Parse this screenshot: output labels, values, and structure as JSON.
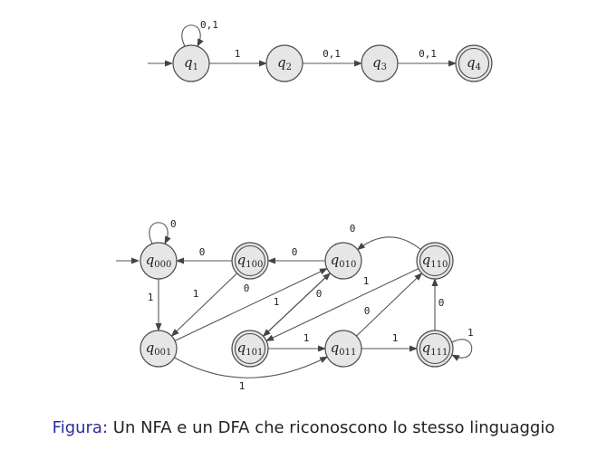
{
  "nfa": {
    "states": [
      {
        "id": "q1",
        "base": "q",
        "sub": "1",
        "accepting": false
      },
      {
        "id": "q2",
        "base": "q",
        "sub": "2",
        "accepting": false
      },
      {
        "id": "q3",
        "base": "q",
        "sub": "3",
        "accepting": false
      },
      {
        "id": "q4",
        "base": "q",
        "sub": "4",
        "accepting": true
      }
    ],
    "start": "q1",
    "transitions": [
      {
        "from": "q1",
        "to": "q1",
        "label": "0,1"
      },
      {
        "from": "q1",
        "to": "q2",
        "label": "1"
      },
      {
        "from": "q2",
        "to": "q3",
        "label": "0,1"
      },
      {
        "from": "q3",
        "to": "q4",
        "label": "0,1"
      }
    ]
  },
  "dfa": {
    "states": [
      {
        "id": "q000",
        "base": "q",
        "sub": "000",
        "accepting": false
      },
      {
        "id": "q100",
        "base": "q",
        "sub": "100",
        "accepting": true
      },
      {
        "id": "q010",
        "base": "q",
        "sub": "010",
        "accepting": false
      },
      {
        "id": "q110",
        "base": "q",
        "sub": "110",
        "accepting": true
      },
      {
        "id": "q001",
        "base": "q",
        "sub": "001",
        "accepting": false
      },
      {
        "id": "q101",
        "base": "q",
        "sub": "101",
        "accepting": true
      },
      {
        "id": "q011",
        "base": "q",
        "sub": "011",
        "accepting": false
      },
      {
        "id": "q111",
        "base": "q",
        "sub": "111",
        "accepting": true
      }
    ],
    "start": "q000",
    "transitions": [
      {
        "from": "q000",
        "to": "q000",
        "label": "0"
      },
      {
        "from": "q100",
        "to": "q000",
        "label": "0"
      },
      {
        "from": "q010",
        "to": "q100",
        "label": "0"
      },
      {
        "from": "q110",
        "to": "q010",
        "label": "0"
      },
      {
        "from": "q000",
        "to": "q001",
        "label": "1"
      },
      {
        "from": "q100",
        "to": "q001",
        "label": "1"
      },
      {
        "from": "q001",
        "to": "q010",
        "label": "0"
      },
      {
        "from": "q101",
        "to": "q010",
        "label": "0"
      },
      {
        "from": "q010",
        "to": "q101",
        "label": "1"
      },
      {
        "from": "q110",
        "to": "q101",
        "label": "1"
      },
      {
        "from": "q101",
        "to": "q011",
        "label": "1"
      },
      {
        "from": "q011",
        "to": "q110",
        "label": "0"
      },
      {
        "from": "q011",
        "to": "q111",
        "label": "1"
      },
      {
        "from": "q111",
        "to": "q110",
        "label": "0"
      },
      {
        "from": "q111",
        "to": "q111",
        "label": "1"
      },
      {
        "from": "q001",
        "to": "q011",
        "label": "1"
      }
    ]
  },
  "caption": {
    "lead": "Figura:",
    "text": "Un NFA e un DFA che riconoscono lo stesso linguaggio"
  },
  "colors": {
    "state_fill": "#e6e6e6",
    "stroke": "#4a4a4a",
    "caption_lead": "#2c2ca0",
    "text": "#222222"
  }
}
